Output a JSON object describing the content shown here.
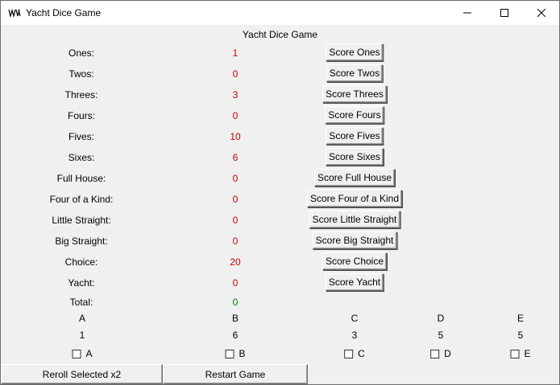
{
  "window": {
    "title": "Yacht Dice Game"
  },
  "heading": "Yacht Dice Game",
  "categories": [
    {
      "label": "Ones:",
      "score": "1",
      "button": "Score Ones"
    },
    {
      "label": "Twos:",
      "score": "0",
      "button": "Score Twos"
    },
    {
      "label": "Threes:",
      "score": "3",
      "button": "Score Threes"
    },
    {
      "label": "Fours:",
      "score": "0",
      "button": "Score Fours"
    },
    {
      "label": "Fives:",
      "score": "10",
      "button": "Score Fives"
    },
    {
      "label": "Sixes:",
      "score": "6",
      "button": "Score Sixes"
    },
    {
      "label": "Full House:",
      "score": "0",
      "button": "Score Full House"
    },
    {
      "label": "Four of a Kind:",
      "score": "0",
      "button": "Score Four of a Kind"
    },
    {
      "label": "Little Straight:",
      "score": "0",
      "button": "Score Little Straight"
    },
    {
      "label": "Big Straight:",
      "score": "0",
      "button": "Score Big Straight"
    },
    {
      "label": "Choice:",
      "score": "20",
      "button": "Score Choice"
    },
    {
      "label": "Yacht:",
      "score": "0",
      "button": "Score Yacht"
    }
  ],
  "total": {
    "label": "Total:",
    "value": "0"
  },
  "dice": [
    {
      "name": "A",
      "value": "1",
      "checkbox_label": "A",
      "checked": false
    },
    {
      "name": "B",
      "value": "6",
      "checkbox_label": "B",
      "checked": false
    },
    {
      "name": "C",
      "value": "3",
      "checkbox_label": "C",
      "checked": false
    },
    {
      "name": "D",
      "value": "5",
      "checkbox_label": "D",
      "checked": false
    },
    {
      "name": "E",
      "value": "5",
      "checkbox_label": "E",
      "checked": false
    }
  ],
  "actions": {
    "reroll": "Reroll Selected x2",
    "restart": "Restart Game"
  },
  "colors": {
    "score": "#c80000",
    "total": "#008000"
  }
}
